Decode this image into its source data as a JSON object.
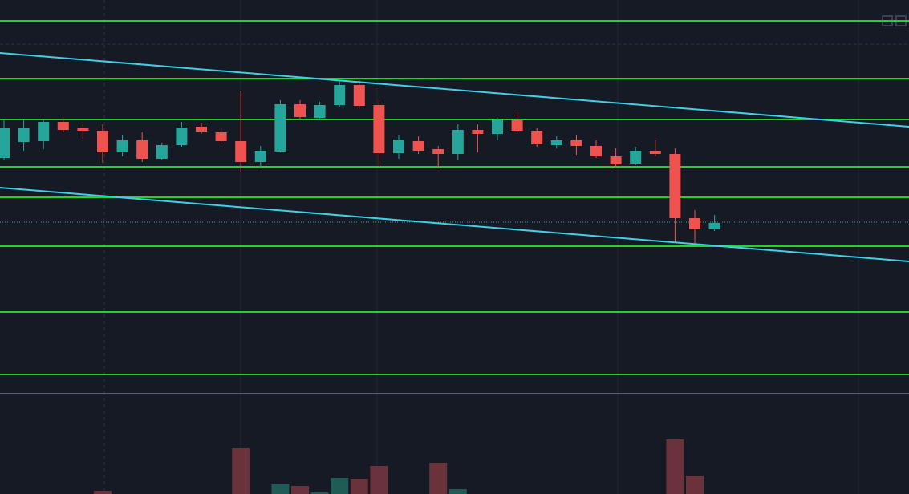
{
  "chart_data": {
    "type": "candlestick",
    "open": [
      293,
      313,
      314,
      338,
      330,
      327,
      300,
      315,
      292,
      309,
      332,
      325,
      314,
      288,
      301,
      360,
      343,
      359,
      384,
      359,
      299,
      314,
      304,
      298,
      328,
      323,
      340,
      327,
      309,
      315,
      308,
      295,
      286,
      302,
      298,
      218,
      204
    ],
    "high": [
      340,
      340,
      342,
      342,
      335,
      335,
      322,
      325,
      312,
      338,
      337,
      330,
      377,
      308,
      365,
      365,
      363,
      390,
      390,
      365,
      322,
      320,
      308,
      335,
      335,
      343,
      350,
      330,
      320,
      322,
      315,
      305,
      307,
      315,
      305,
      228,
      222
    ],
    "low": [
      290,
      302,
      304,
      325,
      317,
      287,
      295,
      288,
      290,
      307,
      323,
      310,
      275,
      280,
      300,
      340,
      340,
      357,
      355,
      283,
      292,
      298,
      280,
      290,
      300,
      315,
      323,
      307,
      305,
      297,
      293,
      280,
      284,
      295,
      188,
      187,
      202
    ],
    "close": [
      330,
      330,
      338,
      328,
      327,
      300,
      315,
      292,
      309,
      331,
      326,
      314,
      288,
      302,
      360,
      344,
      359,
      384,
      358,
      299,
      316,
      302,
      298,
      328,
      323,
      340,
      327,
      310,
      315,
      308,
      295,
      285,
      302,
      298,
      218,
      204,
      212
    ],
    "volume": [
      0,
      0,
      0,
      0,
      0,
      4,
      0,
      0,
      0,
      0,
      0,
      0,
      57,
      0,
      12,
      10,
      2,
      20,
      19,
      35,
      0,
      0,
      39,
      6,
      0,
      0,
      0,
      0,
      0,
      0,
      0,
      0,
      0,
      0,
      68,
      23,
      0
    ],
    "up_color": "#26a69a",
    "down_color": "#ef5350",
    "up_volume_color": "#1e5c55",
    "down_volume_color": "#6a323a",
    "levels": [
      464,
      392,
      341,
      282,
      244,
      183,
      101,
      23
    ],
    "level_color": "#22d42a",
    "trendlines": [
      [
        424,
        332
      ],
      [
        256,
        164
      ]
    ],
    "trendline_color": "#3fd0e8",
    "last_price": 213,
    "ylim": [
      0,
      490
    ],
    "vlim": [
      0,
      120
    ]
  }
}
